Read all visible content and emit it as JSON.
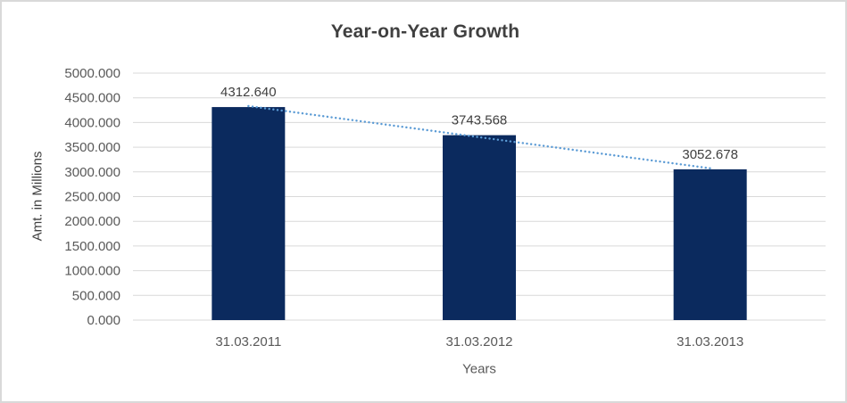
{
  "chart_data": {
    "type": "bar",
    "title": "Year-on-Year Growth",
    "xlabel": "Years",
    "ylabel": "Amt. in Millions",
    "categories": [
      "31.03.2011",
      "31.03.2012",
      "31.03.2013"
    ],
    "values": [
      4312.64,
      3743.568,
      3052.678
    ],
    "data_labels": [
      "4312.640",
      "3743.568",
      "3052.678"
    ],
    "ylim": [
      0,
      5000
    ],
    "ytick_step": 500,
    "ytick_decimals": 3,
    "grid": true,
    "legend": false,
    "trendline": {
      "type": "linear",
      "style": "dotted"
    },
    "colors": {
      "bar": "#0B2A5E",
      "trendline": "#5B9BD5",
      "gridline": "#D9D9D9",
      "title_text": "#404040",
      "axis_text": "#595959",
      "axis_title_text": "#404040",
      "data_label_text": "#404040",
      "frame_border": "#D9D9D9",
      "background": "#FFFFFF"
    }
  }
}
